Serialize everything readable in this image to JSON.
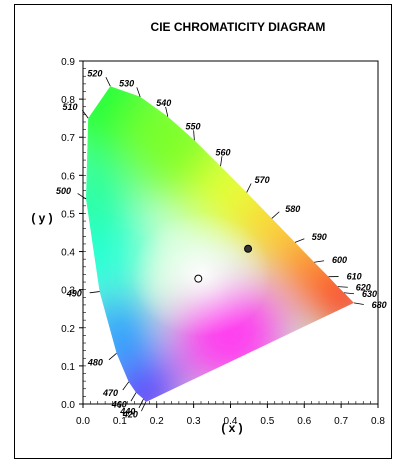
{
  "chart_data": {
    "type": "scatter",
    "title": "CIE CHROMATICITY DIAGRAM",
    "xlabel": "( x )",
    "ylabel": "( y )",
    "xlim": [
      0,
      0.8
    ],
    "ylim": [
      0,
      0.9
    ],
    "x_ticks": [
      "0.0",
      "0.1",
      "0.2",
      "0.3",
      "0.4",
      "0.5",
      "0.6",
      "0.7",
      "0.8"
    ],
    "y_ticks": [
      "0.0",
      "0.1",
      "0.2",
      "0.3",
      "0.4",
      "0.5",
      "0.6",
      "0.7",
      "0.8",
      "0.9"
    ],
    "spectral_locus": [
      {
        "label": "420",
        "x": 0.17,
        "y": 0.005
      },
      {
        "label": "440",
        "x": 0.164,
        "y": 0.013
      },
      {
        "label": "460",
        "x": 0.144,
        "y": 0.03
      },
      {
        "label": "470",
        "x": 0.124,
        "y": 0.058
      },
      {
        "label": "480",
        "x": 0.091,
        "y": 0.133
      },
      {
        "label": "490",
        "x": 0.045,
        "y": 0.295
      },
      {
        "label": "500",
        "x": 0.008,
        "y": 0.538
      },
      {
        "label": "510",
        "x": 0.014,
        "y": 0.75
      },
      {
        "label": "520",
        "x": 0.074,
        "y": 0.834
      },
      {
        "label": "530",
        "x": 0.155,
        "y": 0.806
      },
      {
        "label": "540",
        "x": 0.23,
        "y": 0.754
      },
      {
        "label": "550",
        "x": 0.302,
        "y": 0.692
      },
      {
        "label": "560",
        "x": 0.373,
        "y": 0.624
      },
      {
        "label": "570",
        "x": 0.444,
        "y": 0.555
      },
      {
        "label": "580",
        "x": 0.512,
        "y": 0.487
      },
      {
        "label": "590",
        "x": 0.575,
        "y": 0.424
      },
      {
        "label": "600",
        "x": 0.627,
        "y": 0.372
      },
      {
        "label": "610",
        "x": 0.666,
        "y": 0.334
      },
      {
        "label": "620",
        "x": 0.691,
        "y": 0.308
      },
      {
        "label": "630",
        "x": 0.708,
        "y": 0.292
      },
      {
        "label": "680",
        "x": 0.7347,
        "y": 0.2653
      }
    ],
    "points": [
      {
        "x": 0.3127,
        "y": 0.329,
        "fill": "#ffffff"
      },
      {
        "x": 0.4476,
        "y": 0.4074,
        "fill": "#333333"
      }
    ]
  }
}
